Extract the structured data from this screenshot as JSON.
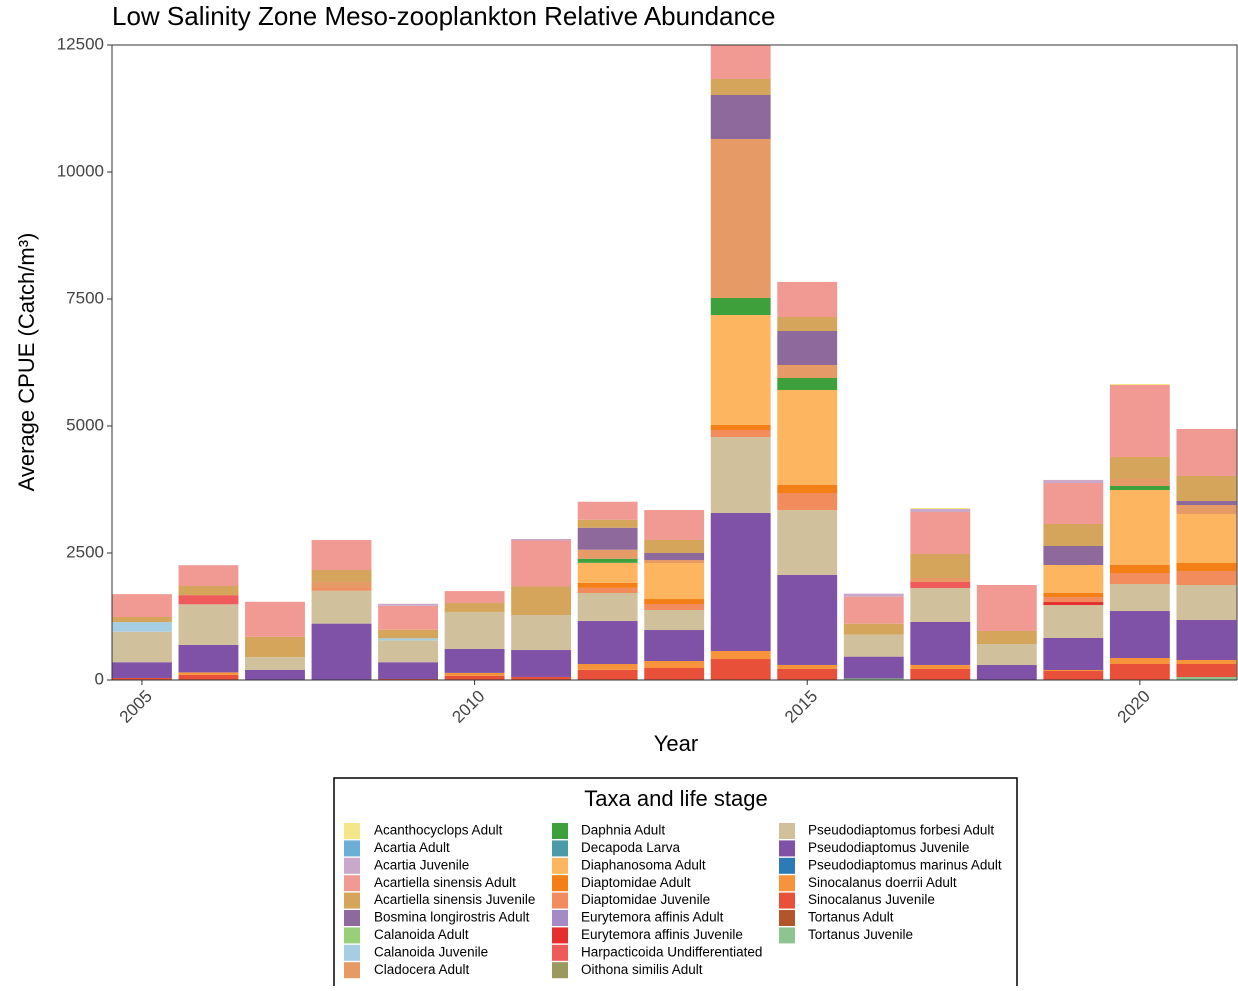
{
  "chart_data": {
    "type": "stacked_bar",
    "title": "Low Salinity Zone Meso-zooplankton Relative Abundance",
    "x_label": "Year",
    "y_label": "Average CPUE (Catch/m³)",
    "legend_title": "Taxa and life stage",
    "x": [
      2005,
      2006,
      2007,
      2008,
      2009,
      2010,
      2011,
      2012,
      2013,
      2014,
      2015,
      2016,
      2017,
      2018,
      2019,
      2020,
      2021
    ],
    "xlim": [
      2004.55,
      2021.46
    ],
    "xticks": [
      2005,
      2010,
      2015,
      2020
    ],
    "ylim": [
      0,
      12500
    ],
    "yticks": [
      0,
      2500,
      5000,
      7500,
      10000,
      12500
    ],
    "grid": false,
    "series": [
      {
        "name": "Acanthocyclops Adult",
        "color": "#f5e68a",
        "values": [
          0,
          0,
          0,
          0,
          0,
          0,
          0,
          0,
          0,
          0,
          0,
          0,
          20,
          0,
          0,
          20,
          0
        ]
      },
      {
        "name": "Acartia Adult",
        "color": "#6baed6",
        "values": [
          0,
          0,
          0,
          0,
          0,
          0,
          0,
          0,
          0,
          0,
          0,
          0,
          0,
          0,
          0,
          0,
          0
        ]
      },
      {
        "name": "Acartia Juvenile",
        "color": "#c9a8c9",
        "values": [
          0,
          0,
          0,
          0,
          40,
          0,
          30,
          0,
          0,
          0,
          0,
          60,
          59,
          0,
          60,
          0,
          0
        ]
      },
      {
        "name": "Acartiella sinensis Adult",
        "color": "#f09a93",
        "values": [
          450,
          410,
          690,
          590,
          470,
          235,
          906,
          354,
          590,
          669,
          689,
          532,
          827,
          905,
          807,
          1417,
          925
        ]
      },
      {
        "name": "Acartiella sinensis Juvenile",
        "color": "#d4a55a",
        "values": [
          100,
          180,
          400,
          235,
          170,
          175,
          560,
          158,
          256,
          315,
          276,
          215,
          472,
          256,
          433,
          433,
          492
        ]
      },
      {
        "name": "Bosmina longirostris Adult",
        "color": "#8e6a9c",
        "values": [
          0,
          0,
          0,
          0,
          0,
          0,
          0,
          433,
          138,
          866,
          669,
          0,
          0,
          0,
          374,
          0,
          79
        ]
      },
      {
        "name": "Calanoida Adult",
        "color": "#98d078",
        "values": [
          0,
          0,
          0,
          0,
          0,
          0,
          0,
          0,
          0,
          0,
          0,
          0,
          0,
          0,
          0,
          0,
          0
        ]
      },
      {
        "name": "Calanoida Juvenile",
        "color": "#a6cee3",
        "values": [
          190,
          0,
          0,
          0,
          40,
          0,
          0,
          0,
          0,
          0,
          0,
          0,
          0,
          0,
          0,
          0,
          0
        ]
      },
      {
        "name": "Cladocera Adult",
        "color": "#e69a66",
        "values": [
          0,
          0,
          0,
          120,
          0,
          0,
          0,
          177,
          59,
          3130,
          256,
          0,
          79,
          0,
          0,
          138,
          177
        ]
      },
      {
        "name": "Daphnia Adult",
        "color": "#3da03a",
        "values": [
          0,
          0,
          0,
          0,
          0,
          0,
          0,
          80,
          0,
          335,
          236,
          0,
          0,
          0,
          0,
          79,
          0
        ]
      },
      {
        "name": "Decapoda Larva",
        "color": "#4a9aa8",
        "values": [
          0,
          0,
          0,
          0,
          0,
          0,
          0,
          0,
          0,
          0,
          0,
          0,
          0,
          0,
          0,
          0,
          0
        ]
      },
      {
        "name": "Diaphanosoma Adult",
        "color": "#fdb560",
        "values": [
          0,
          0,
          0,
          0,
          0,
          0,
          0,
          394,
          709,
          2165,
          1870,
          0,
          0,
          0,
          551,
          1476,
          965
        ]
      },
      {
        "name": "Diaptomidae Adult",
        "color": "#f57f17",
        "values": [
          0,
          0,
          0,
          0,
          0,
          0,
          0,
          100,
          98,
          99,
          158,
          0,
          0,
          0,
          79,
          158,
          157
        ]
      },
      {
        "name": "Diaptomidae Juvenile",
        "color": "#f28c5c",
        "values": [
          0,
          0,
          0,
          50,
          0,
          0,
          0,
          100,
          118,
          138,
          335,
          0,
          0,
          0,
          99,
          216,
          276
        ]
      },
      {
        "name": "Eurytemora affinis Adult",
        "color": "#a48bc7",
        "values": [
          0,
          0,
          0,
          0,
          0,
          0,
          0,
          0,
          0,
          0,
          0,
          0,
          0,
          0,
          0,
          0,
          0
        ]
      },
      {
        "name": "Eurytemora affinis Juvenile",
        "color": "#e52e2e",
        "values": [
          0,
          0,
          0,
          0,
          0,
          0,
          0,
          0,
          0,
          0,
          0,
          0,
          0,
          0,
          59,
          0,
          0
        ]
      },
      {
        "name": "Harpacticoida Undifferentiated",
        "color": "#ef5b5b",
        "values": [
          0,
          180,
          0,
          0,
          0,
          0,
          0,
          0,
          0,
          0,
          0,
          0,
          118,
          0,
          0,
          0,
          0
        ]
      },
      {
        "name": "Oithona similis Adult",
        "color": "#9a9a5e",
        "values": [
          0,
          0,
          0,
          0,
          0,
          0,
          0,
          0,
          0,
          0,
          0,
          0,
          0,
          0,
          0,
          0,
          0
        ]
      },
      {
        "name": "Pseudodiaptomus forbesi Adult",
        "color": "#d1c09c",
        "values": [
          600,
          800,
          250,
          650,
          430,
          730,
          690,
          552,
          394,
          1496,
          1279,
          433,
          669,
          414,
          649,
          532,
          689
        ]
      },
      {
        "name": "Pseudodiaptomus Juvenile",
        "color": "#7f52a8",
        "values": [
          310,
          540,
          200,
          1110,
          330,
          470,
          530,
          846,
          610,
          2716,
          1771,
          430,
          846,
          295,
          630,
          925,
          787
        ]
      },
      {
        "name": "Pseudodiaptomus marinus Adult",
        "color": "#2c7bb6",
        "values": [
          0,
          0,
          0,
          0,
          0,
          0,
          0,
          0,
          0,
          0,
          0,
          0,
          0,
          0,
          0,
          0,
          0
        ]
      },
      {
        "name": "Sinocalanus doerrii Adult",
        "color": "#f7933a",
        "values": [
          0,
          50,
          0,
          0,
          0,
          60,
          0,
          115,
          138,
          158,
          79,
          0,
          79,
          0,
          20,
          118,
          79
        ]
      },
      {
        "name": "Sinocalanus Juvenile",
        "color": "#e8503a",
        "values": [
          40,
          100,
          0,
          0,
          20,
          80,
          60,
          200,
          236,
          413,
          217,
          0,
          217,
          0,
          177,
          315,
          256
        ]
      },
      {
        "name": "Tortanus Adult",
        "color": "#b0562a",
        "values": [
          0,
          0,
          0,
          0,
          0,
          0,
          0,
          0,
          0,
          0,
          0,
          0,
          0,
          0,
          0,
          0,
          0
        ]
      },
      {
        "name": "Tortanus Juvenile",
        "color": "#8dc48f",
        "values": [
          0,
          0,
          0,
          0,
          0,
          0,
          0,
          0,
          0,
          0,
          0,
          30,
          0,
          0,
          0,
          0,
          59
        ]
      }
    ]
  }
}
